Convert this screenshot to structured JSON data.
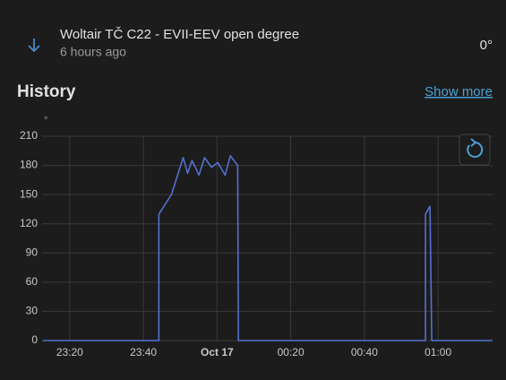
{
  "entity": {
    "name": "Woltair TČ C22 - EVII-EEV open degree",
    "time": "6 hours ago",
    "state": "0°"
  },
  "history": {
    "title": "History",
    "link": "Show more"
  },
  "chart_data": {
    "type": "line",
    "ylabel": "°",
    "color": "#5470d0",
    "x": [
      -47.3,
      -15.8,
      -15.8,
      -12.4,
      -9.2,
      -8.0,
      -6.8,
      -4.9,
      -3.4,
      -1.5,
      0.2,
      2.2,
      3.6,
      5.6,
      5.8,
      56.6,
      56.6,
      57.8,
      58.3,
      74.8
    ],
    "values": [
      0,
      0,
      130,
      150,
      188,
      172,
      185,
      170,
      188,
      178,
      183,
      170,
      190,
      180,
      0,
      0,
      130,
      138,
      0,
      0
    ],
    "xlim": [
      -47.5,
      74.8
    ],
    "xticks": [
      {
        "value": -40,
        "label": "23:20"
      },
      {
        "value": -20,
        "label": "23:40"
      },
      {
        "value": 0,
        "label": "Oct 17"
      },
      {
        "value": 20,
        "label": "00:20"
      },
      {
        "value": 40,
        "label": "00:40"
      },
      {
        "value": 60,
        "label": "01:00"
      }
    ],
    "ylim": [
      0,
      210
    ],
    "yticks": [
      0,
      30,
      60,
      90,
      120,
      150,
      180,
      210
    ],
    "grid": true
  }
}
